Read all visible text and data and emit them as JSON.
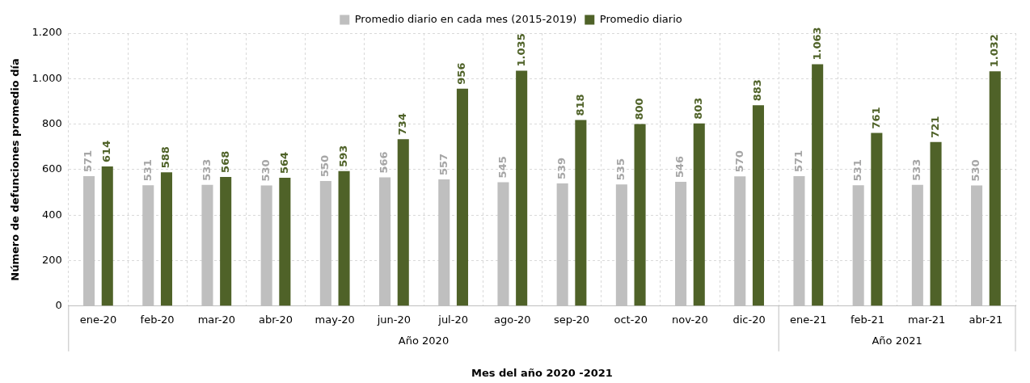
{
  "chart_data": {
    "type": "bar",
    "xlabel": "Mes del año 2020 -2021",
    "ylabel": "Número de defunciones promedio día",
    "categories": [
      "ene-20",
      "feb-20",
      "mar-20",
      "abr-20",
      "may-20",
      "jun-20",
      "jul-20",
      "ago-20",
      "sep-20",
      "oct-20",
      "nov-20",
      "dic-20",
      "ene-21",
      "feb-21",
      "mar-21",
      "abr-21"
    ],
    "series": [
      {
        "name": "Promedio diario en cada mes (2015-2019)",
        "color": "#bfbfbf",
        "values": [
          571,
          531,
          533,
          530,
          550,
          566,
          557,
          545,
          539,
          535,
          546,
          570,
          571,
          531,
          533,
          530
        ],
        "value_labels": [
          "571",
          "531",
          "533",
          "530",
          "550",
          "566",
          "557",
          "545",
          "539",
          "535",
          "546",
          "570",
          "571",
          "531",
          "533",
          "530"
        ]
      },
      {
        "name": "Promedio diario",
        "color": "#4f6228",
        "values": [
          614,
          588,
          568,
          564,
          593,
          734,
          956,
          1035,
          818,
          800,
          803,
          883,
          1063,
          761,
          721,
          1032
        ],
        "value_labels": [
          "614",
          "588",
          "568",
          "564",
          "593",
          "734",
          "956",
          "1.035",
          "818",
          "800",
          "803",
          "883",
          "1.063",
          "761",
          "721",
          "1.032"
        ]
      }
    ],
    "ylim": [
      0,
      1200
    ],
    "yticks": [
      0,
      {
        "value": 200,
        "label": "200"
      },
      {
        "value": 400,
        "label": "400"
      },
      {
        "value": 600,
        "label": "600"
      },
      {
        "value": 800,
        "label": "800"
      },
      {
        "value": 1000,
        "label": "1.000"
      },
      {
        "value": 1200,
        "label": "1.200"
      }
    ],
    "annotations": [
      "Año 2020",
      "Año 2021"
    ],
    "grid": true,
    "legend": "top"
  }
}
